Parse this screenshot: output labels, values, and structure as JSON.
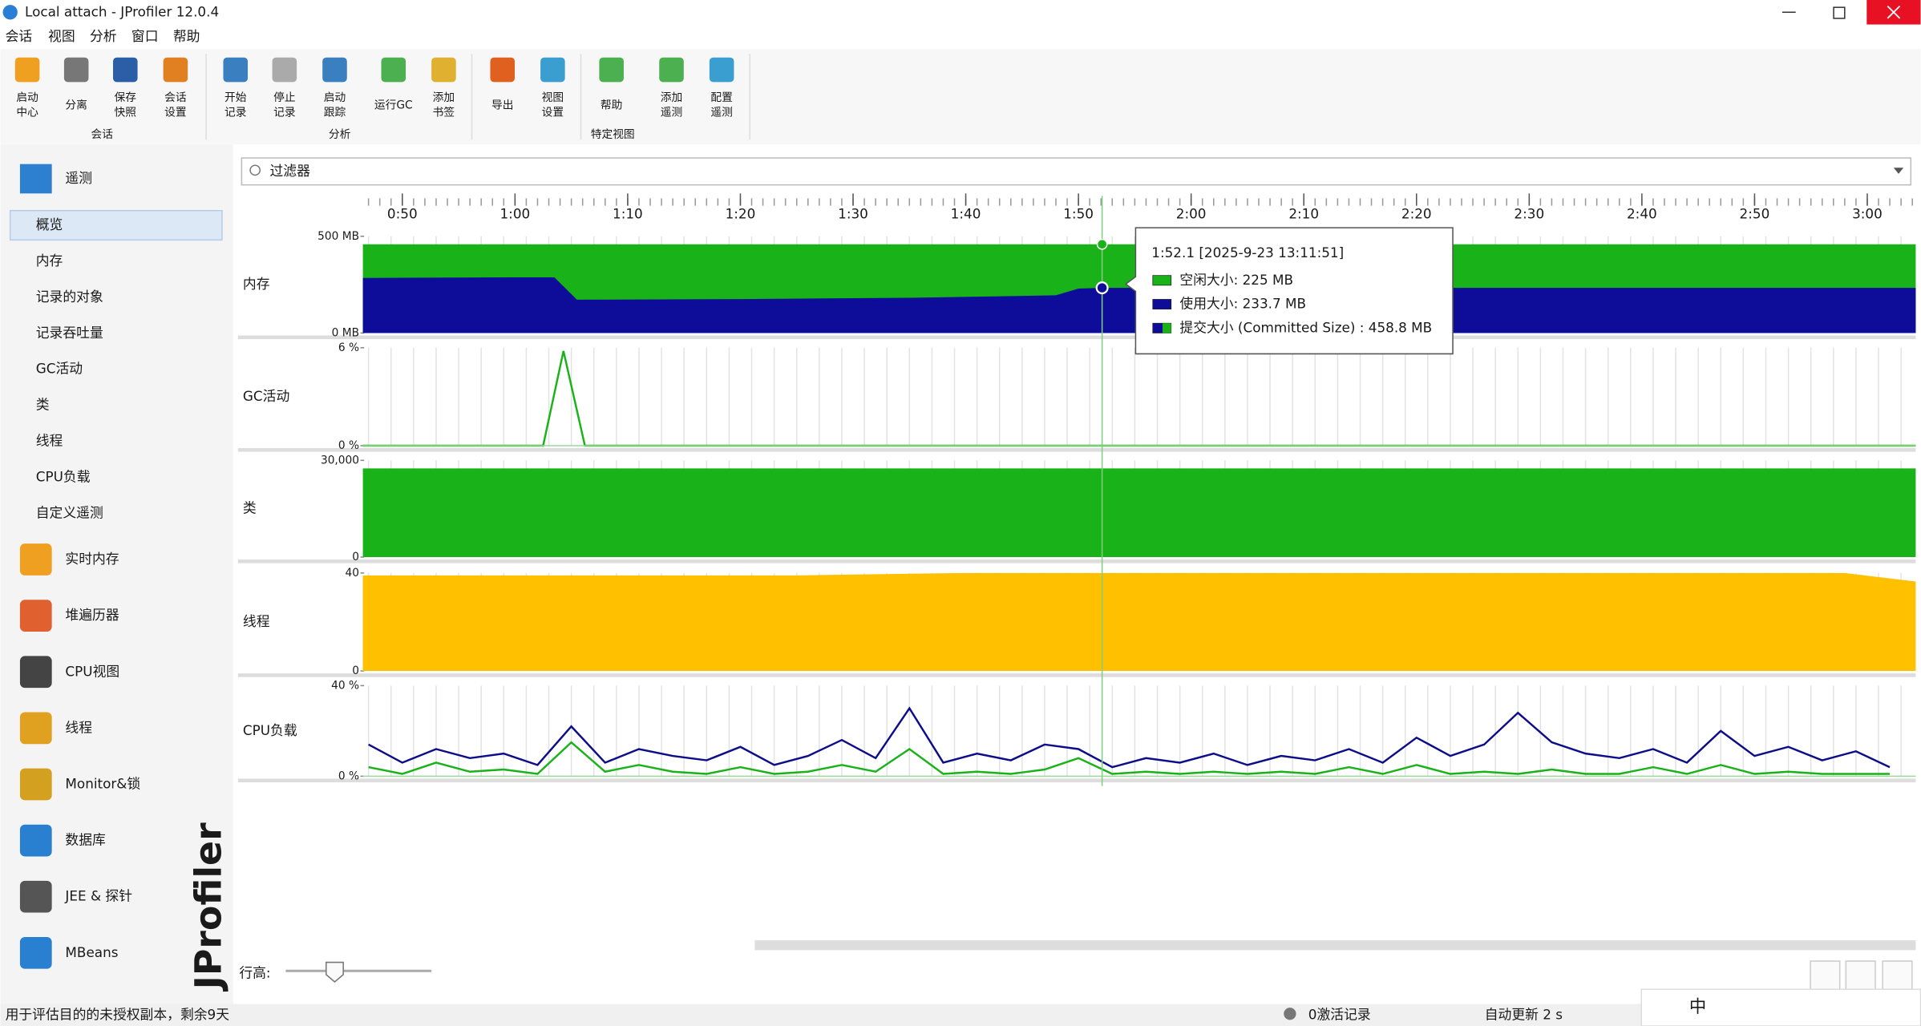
{
  "window": {
    "title": "Local attach - JProfiler 12.0.4"
  },
  "menu": [
    "会话",
    "视图",
    "分析",
    "窗口",
    "帮助"
  ],
  "toolbar": {
    "groups": [
      {
        "label": "会话",
        "buttons": [
          [
            "启动",
            "中心"
          ],
          [
            "分离"
          ],
          [
            "保存",
            "快照"
          ],
          [
            "会话",
            "设置"
          ]
        ]
      },
      {
        "label": "分析",
        "buttons": [
          [
            "开始",
            "记录"
          ],
          [
            "停止",
            "记录"
          ],
          [
            "启动",
            "跟踪"
          ],
          [
            "运行GC"
          ],
          [
            "添加",
            "书签"
          ]
        ]
      },
      {
        "label": "特定视图",
        "buttons": [
          [
            "导出"
          ],
          [
            "视图",
            "设置"
          ],
          [
            "帮助"
          ],
          [
            "添加",
            "遥测"
          ],
          [
            "配置",
            "遥测"
          ]
        ]
      }
    ]
  },
  "sidebar": {
    "telemetry": {
      "label": "遥测",
      "items": [
        "概览",
        "内存",
        "记录的对象",
        "记录吞吐量",
        "GC活动",
        "类",
        "线程",
        "CPU负载",
        "自定义遥测"
      ],
      "selected": 0
    },
    "sections": [
      "实时内存",
      "堆遍历器",
      "CPU视图",
      "线程",
      "Monitor&锁",
      "数据库",
      "JEE & 探针",
      "MBeans"
    ],
    "watermark": "JProfiler"
  },
  "filter": {
    "placeholder": "过滤器"
  },
  "time_axis": {
    "xlim": [
      46.5,
      184.3
    ],
    "ticks": [
      {
        "value": 50,
        "label": "0:50"
      },
      {
        "value": 60,
        "label": "1:00"
      },
      {
        "value": 70,
        "label": "1:10"
      },
      {
        "value": 80,
        "label": "1:20"
      },
      {
        "value": 90,
        "label": "1:30"
      },
      {
        "value": 100,
        "label": "1:40"
      },
      {
        "value": 110,
        "label": "1:50"
      },
      {
        "value": 120,
        "label": "2:00"
      },
      {
        "value": 130,
        "label": "2:10"
      },
      {
        "value": 140,
        "label": "2:20"
      },
      {
        "value": 150,
        "label": "2:30"
      },
      {
        "value": 160,
        "label": "2:40"
      },
      {
        "value": 170,
        "label": "2:50"
      },
      {
        "value": 180,
        "label": "3:00"
      }
    ]
  },
  "charts": [
    {
      "label": "内存",
      "type": "area",
      "ylim": [
        0,
        500
      ],
      "yticks": [
        {
          "value": 500,
          "label": "500 MB"
        },
        {
          "value": 0,
          "label": "0 MB"
        }
      ],
      "x": [
        46.5,
        60,
        63.5,
        65.5,
        80,
        95,
        108,
        110,
        112.1,
        140,
        184.3
      ],
      "series": [
        {
          "color": "#19b219",
          "values": [
            458.8,
            458.8,
            458.8,
            458.8,
            458.8,
            458.8,
            458.8,
            458.8,
            458.8,
            458.8,
            458.8
          ]
        },
        {
          "color": "#0d0d9a",
          "values": [
            285,
            288,
            288,
            172,
            175,
            182,
            195,
            230,
            233.7,
            233.7,
            233.7
          ]
        }
      ]
    },
    {
      "label": "GC活动",
      "type": "line",
      "ylim": [
        0,
        6
      ],
      "yticks": [
        {
          "value": 6,
          "label": "6 %"
        },
        {
          "value": 0,
          "label": "0 %"
        }
      ],
      "x": [
        46.5,
        62.5,
        64.3,
        66.2,
        184.3
      ],
      "series": [
        {
          "color": "#19b219",
          "values": [
            0,
            0,
            5.8,
            0,
            0
          ]
        }
      ]
    },
    {
      "label": "类",
      "type": "area",
      "ylim": [
        0,
        30000
      ],
      "yticks": [
        {
          "value": 30000,
          "label": "30,000"
        },
        0
      ],
      "x": [
        46.5,
        184.3
      ],
      "series": [
        {
          "color": "#19b219",
          "values": [
            27500,
            27500
          ]
        }
      ]
    },
    {
      "label": "线程",
      "type": "area",
      "ylim": [
        0,
        40
      ],
      "yticks": [
        40,
        0
      ],
      "x": [
        46.5,
        85,
        92,
        100,
        170,
        178,
        184.3
      ],
      "series": [
        {
          "color": "#ffc000",
          "values": [
            39,
            39,
            39.5,
            40,
            40,
            40,
            36.5
          ]
        }
      ]
    },
    {
      "label": "CPU负载",
      "type": "line",
      "ylim": [
        0,
        40
      ],
      "yticks": [
        {
          "value": 40,
          "label": "40 %"
        },
        {
          "value": 0,
          "label": "0 %"
        }
      ],
      "x": [
        47,
        50,
        53,
        56,
        59,
        62,
        65,
        68,
        71,
        74,
        77,
        80,
        83,
        86,
        89,
        92,
        95,
        98,
        101,
        104,
        107,
        110,
        113,
        116,
        119,
        122,
        125,
        128,
        131,
        134,
        137,
        140,
        143,
        146,
        149,
        152,
        155,
        158,
        161,
        164,
        167,
        170,
        173,
        176,
        179,
        182
      ],
      "series": [
        {
          "color": "#0d0d8a",
          "values": [
            14,
            6,
            12,
            8,
            10,
            5,
            22,
            6,
            12,
            9,
            7,
            13,
            5,
            9,
            16,
            8,
            30,
            6,
            10,
            7,
            14,
            12,
            4,
            8,
            6,
            10,
            5,
            9,
            7,
            12,
            6,
            17,
            9,
            14,
            28,
            15,
            10,
            8,
            12,
            6,
            20,
            9,
            13,
            7,
            11,
            4
          ]
        },
        {
          "color": "#19b219",
          "values": [
            4,
            1,
            6,
            2,
            3,
            1,
            15,
            2,
            5,
            2,
            1,
            4,
            1,
            2,
            5,
            2,
            12,
            1,
            2,
            1,
            3,
            8,
            1,
            2,
            1,
            2,
            1,
            2,
            1,
            4,
            1,
            5,
            1,
            2,
            1,
            3,
            1,
            1,
            4,
            1,
            5,
            1,
            2,
            1,
            1,
            1
          ]
        }
      ]
    }
  ],
  "cursor": {
    "value": 112.1
  },
  "tooltip": {
    "header": "1:52.1 [2025-9-23 13:11:51]",
    "rows": [
      {
        "color": "#19b219",
        "text": "空闲大小:  225 MB"
      },
      {
        "color": "#0d0d9a",
        "text": "使用大小:  233.7 MB"
      },
      {
        "color": "#0d0d9a",
        "text": "提交大小 (Committed Size) :  458.8 MB"
      }
    ]
  },
  "row_height_label": "行高:",
  "status": {
    "message": "用于评估目的的未授权副本，剩余9天",
    "recordings": "0激活记录",
    "auto_update": "自动更新 2 s",
    "ime": "中"
  }
}
